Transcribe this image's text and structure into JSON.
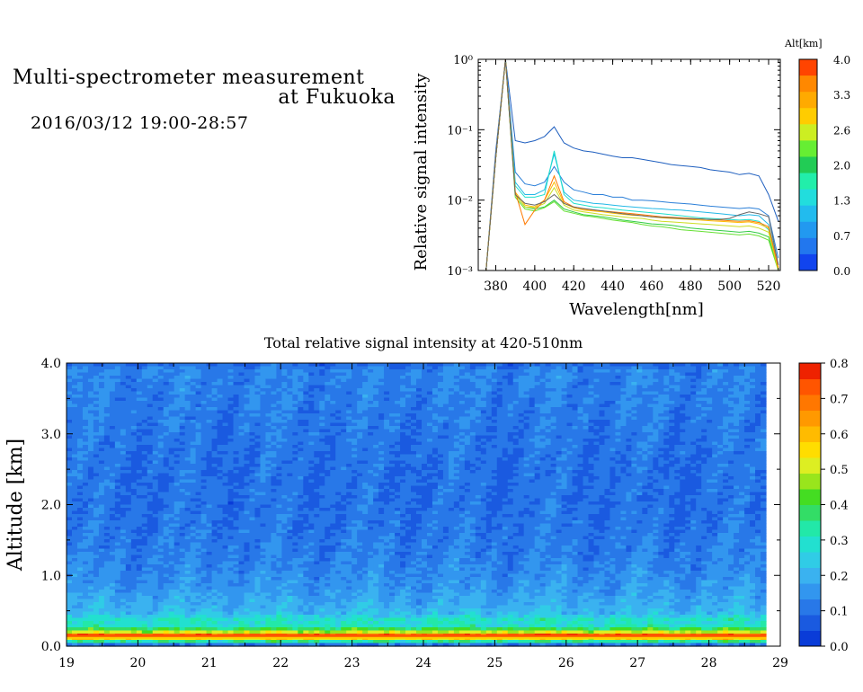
{
  "header": {
    "line1": "Multi-spectrometer measurement",
    "line2": "at Fukuoka",
    "period": "2016/03/12 19:00-28:57"
  },
  "chart_data": [
    {
      "type": "line",
      "xlabel": "Wavelength[nm]",
      "ylabel": "Relative signal intensity",
      "yscale": "log",
      "xlim": [
        371,
        526
      ],
      "ylim": [
        0.001,
        1
      ],
      "x_ticks": [
        380,
        400,
        420,
        440,
        460,
        480,
        500,
        520
      ],
      "y_ticks": [
        {
          "value": 1,
          "label": "10⁰"
        },
        {
          "value": 0.1,
          "label": "10⁻¹"
        },
        {
          "value": 0.01,
          "label": "10⁻²"
        },
        {
          "value": 0.001,
          "label": "10⁻³"
        }
      ],
      "colorbar": {
        "label": "Alt[km]",
        "ticks": [
          "4.0",
          "3.3",
          "2.6",
          "2.0",
          "1.3",
          "0.7",
          "0.0"
        ],
        "colors": [
          "#ff4400",
          "#ff8800",
          "#ffaa00",
          "#ffcc00",
          "#ccee22",
          "#66ee33",
          "#22cc55",
          "#22eeaa",
          "#22dddd",
          "#22bbee",
          "#2299f0",
          "#2277ee",
          "#1144ee"
        ]
      },
      "x": [
        375,
        380,
        385,
        390,
        395,
        400,
        405,
        410,
        415,
        420,
        425,
        430,
        435,
        440,
        445,
        450,
        455,
        460,
        465,
        470,
        475,
        480,
        485,
        490,
        495,
        500,
        505,
        510,
        515,
        520,
        525
      ],
      "series": [
        {
          "color": "#1f5fbf",
          "values": [
            0.0008,
            0.05,
            1.0,
            0.07,
            0.065,
            0.07,
            0.08,
            0.11,
            0.065,
            0.055,
            0.05,
            0.048,
            0.045,
            0.042,
            0.04,
            0.04,
            0.038,
            0.036,
            0.034,
            0.032,
            0.031,
            0.03,
            0.029,
            0.027,
            0.026,
            0.025,
            0.023,
            0.024,
            0.022,
            0.012,
            0.005
          ]
        },
        {
          "color": "#2b7fd8",
          "values": [
            0.0008,
            0.04,
            1.0,
            0.025,
            0.017,
            0.016,
            0.018,
            0.03,
            0.018,
            0.014,
            0.013,
            0.012,
            0.012,
            0.011,
            0.011,
            0.01,
            0.01,
            0.0098,
            0.0095,
            0.0092,
            0.009,
            0.0088,
            0.0085,
            0.0082,
            0.008,
            0.0078,
            0.0076,
            0.0078,
            0.0075,
            0.006,
            0.0015
          ]
        },
        {
          "color": "#22b8e6",
          "values": [
            0.0008,
            0.04,
            1.0,
            0.018,
            0.012,
            0.012,
            0.014,
            0.045,
            0.013,
            0.01,
            0.0095,
            0.009,
            0.0088,
            0.0085,
            0.0082,
            0.008,
            0.0078,
            0.0076,
            0.0075,
            0.0073,
            0.0072,
            0.007,
            0.0068,
            0.0066,
            0.0064,
            0.0062,
            0.006,
            0.0062,
            0.006,
            0.0045,
            0.0012
          ]
        },
        {
          "color": "#22e0cc",
          "values": [
            0.0008,
            0.04,
            1.0,
            0.016,
            0.011,
            0.011,
            0.012,
            0.05,
            0.012,
            0.009,
            0.0085,
            0.008,
            0.0078,
            0.0075,
            0.0072,
            0.007,
            0.0068,
            0.0066,
            0.0064,
            0.0062,
            0.006,
            0.0058,
            0.0056,
            0.0055,
            0.0054,
            0.0053,
            0.0052,
            0.0053,
            0.005,
            0.0038,
            0.0011
          ]
        },
        {
          "color": "#33cc44",
          "values": [
            0.0008,
            0.04,
            1.0,
            0.012,
            0.008,
            0.0075,
            0.008,
            0.01,
            0.0075,
            0.0068,
            0.0062,
            0.006,
            0.0058,
            0.0055,
            0.0052,
            0.005,
            0.0048,
            0.0046,
            0.0045,
            0.0044,
            0.0042,
            0.004,
            0.0039,
            0.0038,
            0.0037,
            0.0036,
            0.0035,
            0.0036,
            0.0034,
            0.003,
            0.001
          ]
        },
        {
          "color": "#66e033",
          "values": [
            0.0008,
            0.04,
            1.0,
            0.011,
            0.0075,
            0.007,
            0.0078,
            0.0095,
            0.007,
            0.0065,
            0.006,
            0.0058,
            0.0055,
            0.0052,
            0.005,
            0.0048,
            0.0045,
            0.0043,
            0.0042,
            0.004,
            0.0038,
            0.0037,
            0.0036,
            0.0035,
            0.0034,
            0.0033,
            0.0032,
            0.0033,
            0.0031,
            0.0027,
            0.001
          ]
        },
        {
          "color": "#ccdd22",
          "values": [
            0.0008,
            0.04,
            1.0,
            0.012,
            0.008,
            0.0078,
            0.009,
            0.015,
            0.0085,
            0.0072,
            0.0068,
            0.0065,
            0.0062,
            0.006,
            0.0058,
            0.0056,
            0.0055,
            0.0052,
            0.005,
            0.0049,
            0.0048,
            0.0047,
            0.0046,
            0.0045,
            0.0044,
            0.0043,
            0.0042,
            0.0043,
            0.004,
            0.0035,
            0.001
          ]
        },
        {
          "color": "#ffbb00",
          "values": [
            0.0008,
            0.04,
            1.0,
            0.013,
            0.0085,
            0.008,
            0.01,
            0.018,
            0.009,
            0.0078,
            0.0072,
            0.007,
            0.0068,
            0.0065,
            0.0063,
            0.0061,
            0.006,
            0.0058,
            0.0056,
            0.0055,
            0.0054,
            0.0053,
            0.0052,
            0.0051,
            0.005,
            0.0049,
            0.0048,
            0.0049,
            0.0046,
            0.004,
            0.0011
          ]
        },
        {
          "color": "#ff7a00",
          "values": [
            0.0008,
            0.04,
            1.0,
            0.013,
            0.0045,
            0.0072,
            0.01,
            0.022,
            0.0095,
            0.008,
            0.0075,
            0.0072,
            0.007,
            0.0068,
            0.0066,
            0.0064,
            0.0062,
            0.006,
            0.0058,
            0.0057,
            0.0056,
            0.0055,
            0.0054,
            0.0053,
            0.0052,
            0.0051,
            0.005,
            0.0051,
            0.0048,
            0.0042,
            0.0011
          ]
        },
        {
          "color": "#666666",
          "values": [
            0.0008,
            0.04,
            1.0,
            0.012,
            0.009,
            0.0085,
            0.0095,
            0.012,
            0.009,
            0.008,
            0.0076,
            0.0073,
            0.007,
            0.0067,
            0.0064,
            0.0062,
            0.006,
            0.0058,
            0.0057,
            0.0056,
            0.0055,
            0.0054,
            0.0054,
            0.0053,
            0.0053,
            0.0055,
            0.0062,
            0.0068,
            0.0064,
            0.0058,
            0.0012
          ]
        }
      ]
    },
    {
      "type": "heatmap",
      "title": "Total relative signal intensity at 420-510nm",
      "ylabel": "Altitude [km]",
      "xlim": [
        19,
        29
      ],
      "ylim": [
        0,
        4
      ],
      "x_ticks": [
        "19",
        "20",
        "21",
        "22",
        "23",
        "24",
        "25",
        "26",
        "27",
        "28",
        "29"
      ],
      "y_ticks": [
        "0.0",
        "1.0",
        "2.0",
        "3.0",
        "4.0"
      ],
      "colorbar": {
        "ticks": [
          "0.0",
          "0.1",
          "0.2",
          "0.3",
          "0.4",
          "0.5",
          "0.6",
          "0.7",
          "0.8"
        ],
        "colors": [
          "#0a3cd8",
          "#1a5ae0",
          "#2878e8",
          "#3296ef",
          "#3ab2f0",
          "#30cce6",
          "#22e0d0",
          "#22e8a8",
          "#33dd66",
          "#44dd22",
          "#99e51c",
          "#ddee22",
          "#ffdd00",
          "#ffbb00",
          "#ff9900",
          "#ff7700",
          "#ff5500",
          "#ee2200"
        ]
      },
      "data": {
        "altitudes": [
          0.0,
          0.15,
          0.2,
          0.25,
          0.3,
          0.38,
          0.45,
          0.6,
          0.8,
          1.0,
          1.3,
          1.6,
          2.0,
          2.5,
          3.0,
          3.5,
          3.9,
          4.0
        ],
        "typical_values": [
          0.0,
          0.75,
          0.5,
          0.38,
          0.28,
          0.3,
          0.22,
          0.19,
          0.16,
          0.14,
          0.12,
          0.11,
          0.1,
          0.1,
          0.11,
          0.12,
          0.13,
          0.08
        ]
      }
    }
  ]
}
